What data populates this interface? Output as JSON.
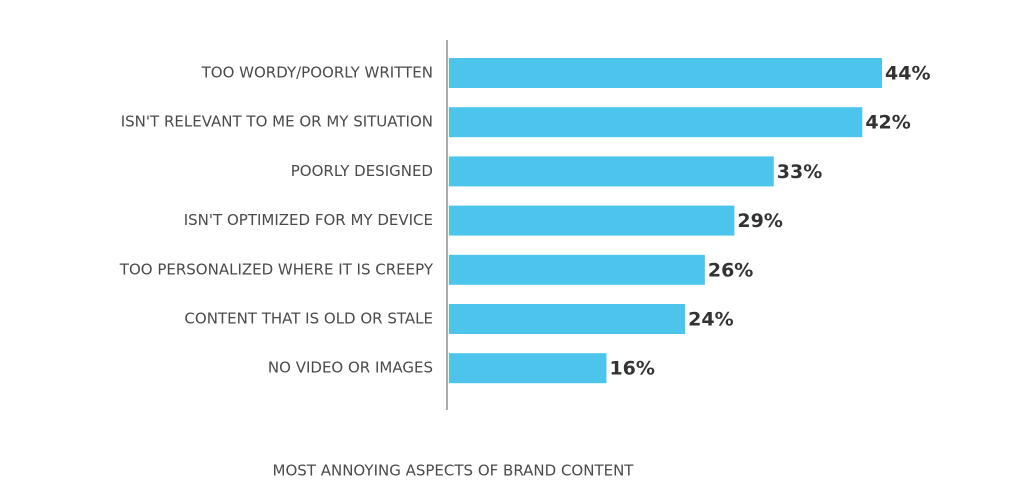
{
  "chart_data": {
    "type": "bar",
    "orientation": "horizontal",
    "title": "MOST ANNOYING ASPECTS OF BRAND CONTENT",
    "categories": [
      "TOO WORDY/POORLY WRITTEN",
      "ISN'T RELEVANT TO ME OR MY SITUATION",
      "POORLY DESIGNED",
      "ISN'T OPTIMIZED FOR MY DEVICE",
      "TOO PERSONALIZED WHERE IT IS CREEPY",
      "CONTENT THAT IS OLD OR STALE",
      "NO VIDEO OR IMAGES"
    ],
    "values": [
      44,
      42,
      33,
      29,
      26,
      24,
      16
    ],
    "value_labels": [
      "44%",
      "42%",
      "33%",
      "29%",
      "26%",
      "24%",
      "16%"
    ],
    "color": "#4dc4ec"
  }
}
